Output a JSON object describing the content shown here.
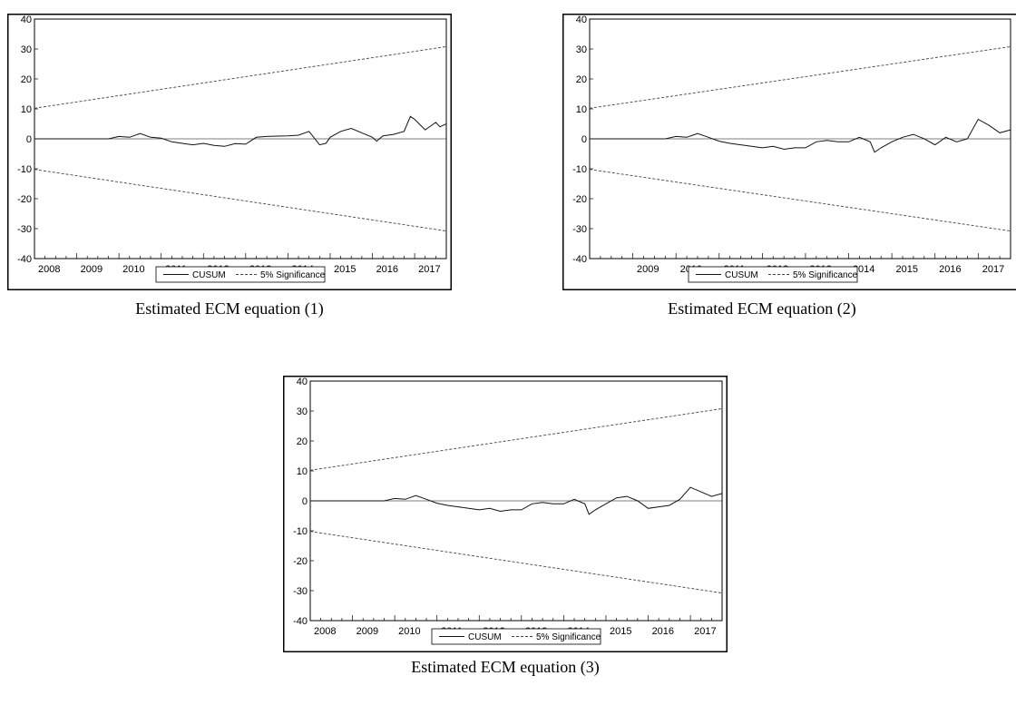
{
  "chart_data": [
    {
      "type": "line",
      "caption": "Estimated ECM equation (1)",
      "x_ticks": [
        "2008",
        "2009",
        "2010",
        "2011",
        "2012",
        "2013",
        "2014",
        "2015",
        "2016",
        "2017"
      ],
      "xlim": [
        2008.0,
        2017.75
      ],
      "ylim": [
        -40,
        40
      ],
      "y_ticks": [
        "40",
        "30",
        "20",
        "10",
        "0",
        "-10",
        "-20",
        "-30",
        "-40"
      ],
      "legend": {
        "position": "bottom-center",
        "entries": [
          "CUSUM",
          "5% Significance"
        ]
      },
      "series": [
        {
          "name": "CUSUM",
          "style": "solid",
          "x": [
            2008.0,
            2009.0,
            2009.75,
            2010.0,
            2010.25,
            2010.5,
            2010.75,
            2011.0,
            2011.25,
            2011.5,
            2011.75,
            2012.0,
            2012.25,
            2012.5,
            2012.75,
            2013.0,
            2013.25,
            2013.5,
            2013.75,
            2014.0,
            2014.25,
            2014.5,
            2014.75,
            2014.9,
            2015.0,
            2015.25,
            2015.5,
            2015.75,
            2016.0,
            2016.1,
            2016.25,
            2016.5,
            2016.75,
            2016.9,
            2017.0,
            2017.25,
            2017.5,
            2017.6,
            2017.75
          ],
          "y": [
            0.0,
            0.0,
            0.0,
            0.8,
            0.5,
            1.8,
            0.5,
            0.2,
            -1.0,
            -1.5,
            -2.0,
            -1.5,
            -2.2,
            -2.5,
            -1.6,
            -1.8,
            0.5,
            0.8,
            0.9,
            1.0,
            1.2,
            2.5,
            -2.0,
            -1.5,
            0.5,
            2.5,
            3.5,
            2.0,
            0.5,
            -0.8,
            1.0,
            1.5,
            2.5,
            7.5,
            6.5,
            3.0,
            5.5,
            4.0,
            5.0
          ]
        },
        {
          "name": "5% Significance",
          "style": "dashed",
          "x": [
            2008.0,
            2017.75
          ],
          "y": [
            10.2,
            30.8
          ]
        },
        {
          "name": "5% Significance",
          "style": "dashed",
          "x": [
            2008.0,
            2017.75
          ],
          "y": [
            -10.2,
            -30.8
          ]
        }
      ]
    },
    {
      "type": "line",
      "caption": "Estimated ECM equation (2)",
      "x_ticks": [
        "2009",
        "2010",
        "2011",
        "2012",
        "2013",
        "2014",
        "2015",
        "2016",
        "2017"
      ],
      "xlim": [
        2008.0,
        2017.75
      ],
      "ylim": [
        -40,
        40
      ],
      "y_ticks": [
        "40",
        "30",
        "20",
        "10",
        "0",
        "-10",
        "-20",
        "-30",
        "-40"
      ],
      "legend": {
        "position": "bottom-center",
        "entries": [
          "CUSUM",
          "5% Significance"
        ]
      },
      "series": [
        {
          "name": "CUSUM",
          "style": "solid",
          "x": [
            2008.0,
            2009.0,
            2009.75,
            2010.0,
            2010.25,
            2010.5,
            2010.75,
            2011.0,
            2011.25,
            2011.5,
            2011.75,
            2012.0,
            2012.25,
            2012.5,
            2012.75,
            2013.0,
            2013.25,
            2013.5,
            2013.75,
            2014.0,
            2014.25,
            2014.5,
            2014.6,
            2014.75,
            2015.0,
            2015.25,
            2015.5,
            2015.75,
            2016.0,
            2016.25,
            2016.5,
            2016.75,
            2017.0,
            2017.25,
            2017.5,
            2017.75
          ],
          "y": [
            0.0,
            0.0,
            0.0,
            0.8,
            0.5,
            1.8,
            0.5,
            -0.8,
            -1.5,
            -2.0,
            -2.5,
            -3.0,
            -2.5,
            -3.5,
            -3.0,
            -3.0,
            -1.0,
            -0.5,
            -1.0,
            -1.0,
            0.5,
            -1.0,
            -4.5,
            -3.0,
            -1.0,
            0.5,
            1.5,
            0.0,
            -2.0,
            0.5,
            -1.0,
            0.0,
            6.5,
            4.5,
            2.0,
            3.0
          ]
        },
        {
          "name": "5% Significance",
          "style": "dashed",
          "x": [
            2008.0,
            2017.75
          ],
          "y": [
            10.2,
            30.8
          ]
        },
        {
          "name": "5% Significance",
          "style": "dashed",
          "x": [
            2008.0,
            2017.75
          ],
          "y": [
            -10.2,
            -30.8
          ]
        }
      ]
    },
    {
      "type": "line",
      "caption": "Estimated ECM equation (3)",
      "x_ticks": [
        "2008",
        "2009",
        "2010",
        "2011",
        "2012",
        "2013",
        "2014",
        "2015",
        "2016",
        "2017"
      ],
      "xlim": [
        2008.0,
        2017.75
      ],
      "ylim": [
        -40,
        40
      ],
      "y_ticks": [
        "40",
        "30",
        "20",
        "10",
        "0",
        "-10",
        "-20",
        "-30",
        "-40"
      ],
      "legend": {
        "position": "bottom-center",
        "entries": [
          "CUSUM",
          "5% Significance"
        ]
      },
      "series": [
        {
          "name": "CUSUM",
          "style": "solid",
          "x": [
            2008.0,
            2009.0,
            2009.75,
            2010.0,
            2010.25,
            2010.5,
            2010.75,
            2011.0,
            2011.25,
            2011.5,
            2011.75,
            2012.0,
            2012.25,
            2012.5,
            2012.75,
            2013.0,
            2013.25,
            2013.5,
            2013.75,
            2014.0,
            2014.25,
            2014.5,
            2014.6,
            2014.75,
            2015.0,
            2015.25,
            2015.5,
            2015.75,
            2016.0,
            2016.25,
            2016.5,
            2016.75,
            2017.0,
            2017.25,
            2017.5,
            2017.75
          ],
          "y": [
            0.0,
            0.0,
            0.0,
            0.8,
            0.5,
            1.8,
            0.5,
            -0.8,
            -1.5,
            -2.0,
            -2.5,
            -3.0,
            -2.5,
            -3.5,
            -3.0,
            -3.0,
            -1.0,
            -0.5,
            -1.0,
            -1.0,
            0.5,
            -1.0,
            -4.5,
            -3.0,
            -1.0,
            1.0,
            1.5,
            0.0,
            -2.5,
            -2.0,
            -1.5,
            0.5,
            4.5,
            3.0,
            1.5,
            2.5
          ]
        },
        {
          "name": "5% Significance",
          "style": "dashed",
          "x": [
            2008.0,
            2017.75
          ],
          "y": [
            10.2,
            30.8
          ]
        },
        {
          "name": "5% Significance",
          "style": "dashed",
          "x": [
            2008.0,
            2017.75
          ],
          "y": [
            -10.2,
            -30.8
          ]
        }
      ]
    }
  ]
}
